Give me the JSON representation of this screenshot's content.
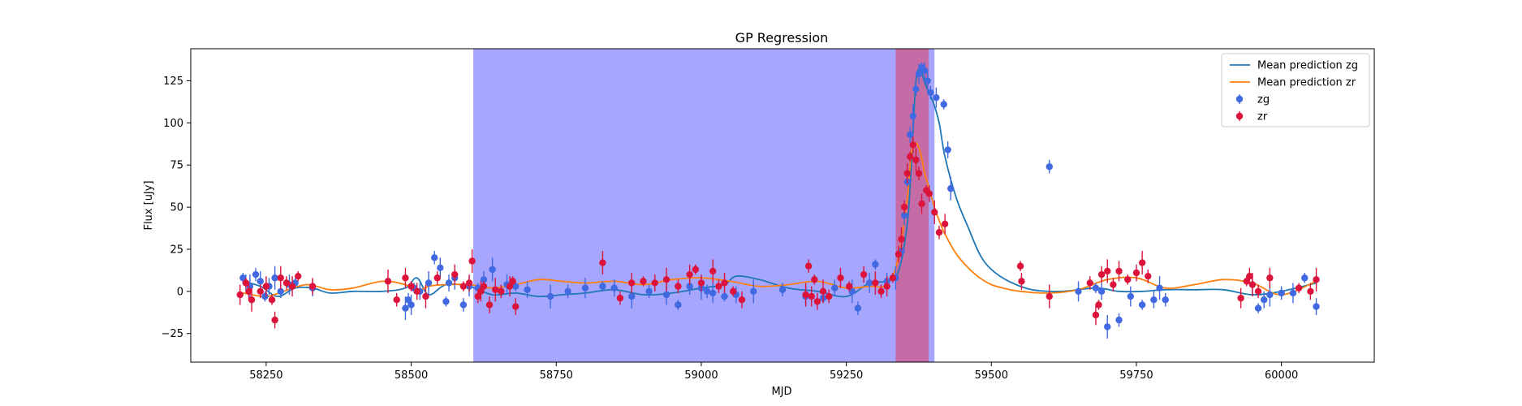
{
  "chart_data": {
    "type": "scatter",
    "title": "GP Regression",
    "xlabel": "MJD",
    "ylabel": "Flux [uJy]",
    "xlim": [
      58120,
      60160
    ],
    "ylim": [
      -42,
      144
    ],
    "xticks": [
      58250,
      58500,
      58750,
      59000,
      59250,
      59500,
      59750,
      60000
    ],
    "yticks": [
      -25,
      0,
      25,
      50,
      75,
      100,
      125
    ],
    "grid": false,
    "legend_position": "top-right",
    "shaded_regions": [
      {
        "x": [
          58607,
          59402
        ],
        "color": "#0000ff",
        "opacity": 0.35
      },
      {
        "x": [
          59335,
          59392
        ],
        "color": "#ff0000",
        "opacity": 0.35
      }
    ],
    "lines": [
      {
        "name": "Mean prediction zg",
        "color": "#1f77b4",
        "x": [
          58210,
          58240,
          58270,
          58300,
          58330,
          58360,
          58400,
          58450,
          58490,
          58510,
          58530,
          58560,
          58600,
          58640,
          58680,
          58720,
          58760,
          58800,
          58850,
          58900,
          58950,
          59000,
          59040,
          59060,
          59100,
          59150,
          59200,
          59250,
          59290,
          59320,
          59340,
          59355,
          59362,
          59370,
          59378,
          59385,
          59392,
          59400,
          59410,
          59420,
          59440,
          59460,
          59480,
          59500,
          59530,
          59570,
          59620,
          59680,
          59720,
          59760,
          59800,
          59850,
          59900,
          59950,
          60000,
          60060
        ],
        "y": [
          6,
          3,
          -3,
          2,
          2,
          -1,
          0,
          0,
          2,
          8,
          -2,
          4,
          3,
          -2,
          -1,
          -3,
          -2,
          -1,
          1,
          -2,
          -1,
          2,
          4,
          9,
          7,
          2,
          0,
          -3,
          5,
          6,
          12,
          40,
          75,
          125,
          131,
          124,
          118,
          112,
          100,
          80,
          55,
          38,
          22,
          13,
          6,
          1,
          0,
          2,
          0,
          0,
          1,
          1,
          1,
          -2,
          0,
          5
        ]
      },
      {
        "name": "Mean prediction zr",
        "color": "#ff7f0e",
        "x": [
          58210,
          58250,
          58280,
          58320,
          58360,
          58400,
          58450,
          58490,
          58510,
          58530,
          58560,
          58600,
          58640,
          58680,
          58720,
          58760,
          58800,
          58850,
          58900,
          58950,
          59000,
          59050,
          59100,
          59150,
          59200,
          59250,
          59290,
          59320,
          59340,
          59355,
          59362,
          59370,
          59378,
          59385,
          59392,
          59400,
          59410,
          59420,
          59440,
          59460,
          59480,
          59500,
          59520,
          59550,
          59600,
          59650,
          59700,
          59750,
          59800,
          59850,
          59900,
          59950,
          60000,
          60060
        ],
        "y": [
          -1,
          -3,
          0,
          4,
          1,
          2,
          6,
          4,
          0,
          3,
          4,
          4,
          2,
          4,
          7,
          6,
          5,
          6,
          4,
          7,
          8,
          6,
          3,
          4,
          6,
          2,
          3,
          4,
          20,
          55,
          82,
          88,
          82,
          70,
          62,
          52,
          42,
          34,
          22,
          14,
          8,
          4,
          2,
          0,
          -1,
          1,
          7,
          8,
          2,
          4,
          7,
          5,
          -2,
          6
        ]
      }
    ],
    "series": [
      {
        "name": "zg",
        "color": "#4169e1",
        "x": [
          58210,
          58215,
          58222,
          58232,
          58240,
          58248,
          58255,
          58265,
          58275,
          58290,
          58300,
          58330,
          58490,
          58495,
          58500,
          58505,
          58515,
          58530,
          58540,
          58550,
          58560,
          58565,
          58575,
          58590,
          58600,
          58615,
          58625,
          58640,
          58655,
          58665,
          58680,
          58700,
          58740,
          58770,
          58800,
          58830,
          58850,
          58880,
          58910,
          58940,
          58960,
          58980,
          59000,
          59010,
          59020,
          59040,
          59060,
          59090,
          59140,
          59180,
          59210,
          59230,
          59260,
          59270,
          59290,
          59300,
          59320,
          59335,
          59345,
          59350,
          59355,
          59360,
          59365,
          59370,
          59375,
          59380,
          59385,
          59390,
          59395,
          59405,
          59418,
          59425,
          59430,
          59600,
          59650,
          59680,
          59690,
          59700,
          59720,
          59740,
          59760,
          59780,
          59790,
          59800,
          59950,
          59960,
          59970,
          59980,
          60000,
          60020,
          60040,
          60060
        ],
        "y": [
          8,
          5,
          3,
          10,
          6,
          -3,
          3,
          8,
          0,
          4,
          5,
          2,
          -10,
          -5,
          -8,
          2,
          0,
          5,
          20,
          14,
          -6,
          5,
          8,
          -8,
          3,
          2,
          7,
          13,
          0,
          4,
          3,
          1,
          -3,
          0,
          2,
          3,
          2,
          -3,
          0,
          -2,
          -8,
          3,
          2,
          0,
          -1,
          -3,
          -2,
          0,
          1,
          -3,
          -4,
          2,
          0,
          -10,
          5,
          16,
          6,
          8,
          24,
          45,
          65,
          93,
          104,
          120,
          129,
          133,
          131,
          125,
          118,
          115,
          111,
          84,
          61,
          74,
          0,
          2,
          0,
          -21,
          -17,
          -3,
          -8,
          -5,
          2,
          -5,
          4,
          -10,
          -5,
          -2,
          -1,
          -1,
          8,
          -9
        ]
      },
      {
        "name": "zr",
        "color": "#dc143c",
        "x": [
          58205,
          58215,
          58220,
          58225,
          58240,
          58250,
          58260,
          58265,
          58275,
          58285,
          58295,
          58305,
          58330,
          58460,
          58475,
          58490,
          58500,
          58510,
          58525,
          58545,
          58575,
          58590,
          58600,
          58605,
          58615,
          58620,
          58625,
          58635,
          58645,
          58655,
          58670,
          58675,
          58680,
          58830,
          58860,
          58880,
          58900,
          58920,
          58940,
          58960,
          58980,
          58990,
          59000,
          59020,
          59030,
          59040,
          59055,
          59070,
          59180,
          59185,
          59190,
          59195,
          59200,
          59210,
          59220,
          59240,
          59255,
          59280,
          59300,
          59310,
          59320,
          59330,
          59340,
          59345,
          59350,
          59355,
          59360,
          59365,
          59370,
          59375,
          59380,
          59388,
          59393,
          59402,
          59410,
          59420,
          59550,
          59552,
          59600,
          59670,
          59680,
          59685,
          59690,
          59700,
          59710,
          59720,
          59735,
          59750,
          59760,
          59770,
          59930,
          59940,
          59945,
          59950,
          59960,
          59980,
          60030,
          60050,
          60060
        ],
        "y": [
          -2,
          5,
          0,
          -5,
          0,
          3,
          -5,
          -17,
          8,
          5,
          3,
          9,
          3,
          6,
          -5,
          8,
          3,
          0,
          -3,
          8,
          10,
          3,
          5,
          18,
          -3,
          0,
          3,
          -8,
          1,
          0,
          3,
          6,
          -9,
          17,
          -4,
          5,
          6,
          5,
          7,
          3,
          10,
          13,
          5,
          12,
          3,
          5,
          0,
          -5,
          -2,
          15,
          -3,
          7,
          -6,
          0,
          -3,
          8,
          3,
          10,
          5,
          0,
          3,
          8,
          22,
          31,
          50,
          70,
          80,
          87,
          78,
          70,
          52,
          60,
          58,
          47,
          35,
          40,
          15,
          6,
          -3,
          5,
          -14,
          -8,
          10,
          12,
          4,
          12,
          7,
          11,
          17,
          9,
          -4,
          6,
          9,
          4,
          0,
          8,
          2,
          0,
          7
        ]
      }
    ]
  }
}
